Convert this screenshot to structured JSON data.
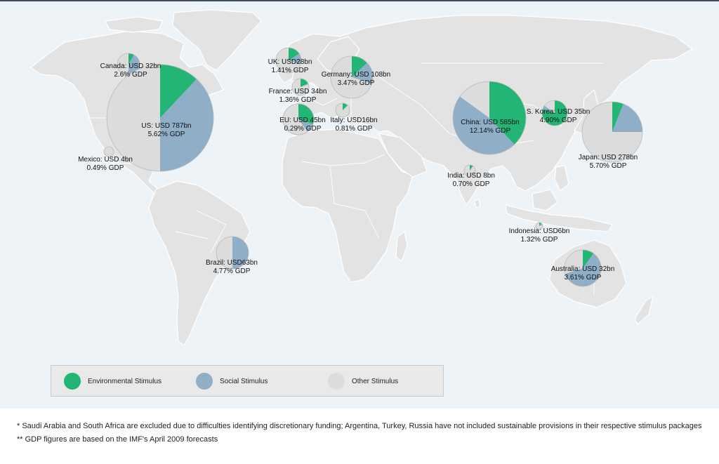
{
  "colors": {
    "environmental": "#22b573",
    "social": "#8faec8",
    "other": "#dcdcdc",
    "pie_outline": "#b9b9b9"
  },
  "legend": {
    "environmental": "Environmental Stimulus",
    "social": "Social Stimulus",
    "other": "Other Stimulus"
  },
  "packages": [
    {
      "id": "canada",
      "line1": "Canada: USD 32bn",
      "line2": "2.6% GDP",
      "amount_usd_bn": 32,
      "gdp_pct": 2.6,
      "shares": {
        "environmental": 0.08,
        "social": 0.42,
        "other": 0.5
      }
    },
    {
      "id": "us",
      "line1": "US: USD 787bn",
      "line2": "5.62% GDP",
      "amount_usd_bn": 787,
      "gdp_pct": 5.62,
      "shares": {
        "environmental": 0.12,
        "social": 0.38,
        "other": 0.5
      }
    },
    {
      "id": "mexico",
      "line1": "Mexico: USD 4bn",
      "line2": "0.49% GDP",
      "amount_usd_bn": 4,
      "gdp_pct": 0.49,
      "shares": {
        "environmental": 0.0,
        "social": 0.0,
        "other": 1.0
      }
    },
    {
      "id": "uk",
      "line1": "UK: USD28bn",
      "line2": "1.41% GDP",
      "amount_usd_bn": 28,
      "gdp_pct": 1.41,
      "shares": {
        "environmental": 0.16,
        "social": 0.14,
        "other": 0.7
      }
    },
    {
      "id": "france",
      "line1": "France: USD 34bn",
      "line2": "1.36% GDP",
      "amount_usd_bn": 34,
      "gdp_pct": 1.36,
      "shares": {
        "environmental": 0.18,
        "social": 0.02,
        "other": 0.8
      }
    },
    {
      "id": "germany",
      "line1": "Germany: USD 108bn",
      "line2": "3.47% GDP",
      "amount_usd_bn": 108,
      "gdp_pct": 3.47,
      "shares": {
        "environmental": 0.13,
        "social": 0.17,
        "other": 0.7
      }
    },
    {
      "id": "eu",
      "line1": "EU: USD 45bn",
      "line2": "0.29% GDP",
      "amount_usd_bn": 45,
      "gdp_pct": 0.29,
      "shares": {
        "environmental": 0.3,
        "social": 0.1,
        "other": 0.6
      }
    },
    {
      "id": "italy",
      "line1": "Italy: USD16bn",
      "line2": "0.81% GDP",
      "amount_usd_bn": 16,
      "gdp_pct": 0.81,
      "shares": {
        "environmental": 0.13,
        "social": 0.0,
        "other": 0.87
      }
    },
    {
      "id": "china",
      "line1": "China: USD 585bn",
      "line2": "12.14% GDP",
      "amount_usd_bn": 585,
      "gdp_pct": 12.14,
      "shares": {
        "environmental": 0.38,
        "social": 0.47,
        "other": 0.15
      }
    },
    {
      "id": "skorea",
      "line1": "S. Korea: USD 35bn",
      "line2": "4.90% GDP",
      "amount_usd_bn": 35,
      "gdp_pct": 4.9,
      "shares": {
        "environmental": 0.8,
        "social": 0.05,
        "other": 0.15
      }
    },
    {
      "id": "japan",
      "line1": "Japan: USD 278bn",
      "line2": "5.70% GDP",
      "amount_usd_bn": 278,
      "gdp_pct": 5.7,
      "shares": {
        "environmental": 0.06,
        "social": 0.19,
        "other": 0.75
      }
    },
    {
      "id": "india",
      "line1": "India: USD 8bn",
      "line2": "0.70% GDP",
      "amount_usd_bn": 8,
      "gdp_pct": 0.7,
      "shares": {
        "environmental": 0.1,
        "social": 0.0,
        "other": 0.9
      }
    },
    {
      "id": "indonesia",
      "line1": "Indonesia: USD6bn",
      "line2": "1.32% GDP",
      "amount_usd_bn": 6,
      "gdp_pct": 1.32,
      "shares": {
        "environmental": 0.1,
        "social": 0.1,
        "other": 0.8
      }
    },
    {
      "id": "brazil",
      "line1": "Brazil: USD63bn",
      "line2": "4.77% GDP",
      "amount_usd_bn": 63,
      "gdp_pct": 4.77,
      "shares": {
        "environmental": 0.0,
        "social": 0.5,
        "other": 0.5
      }
    },
    {
      "id": "australia",
      "line1": "Australia: USD 32bn",
      "line2": "3.61% GDP",
      "amount_usd_bn": 32,
      "gdp_pct": 3.61,
      "shares": {
        "environmental": 0.1,
        "social": 0.6,
        "other": 0.3
      }
    }
  ],
  "footnotes": {
    "note1": "* Saudi Arabia and South Africa are excluded due to difficulties identifying discretionary funding; Argentina, Turkey, Russia have not included sustainable provisions in their respective stimulus packages",
    "note2": "** GDP figures are based on the IMF's April 2009 forecasts"
  }
}
